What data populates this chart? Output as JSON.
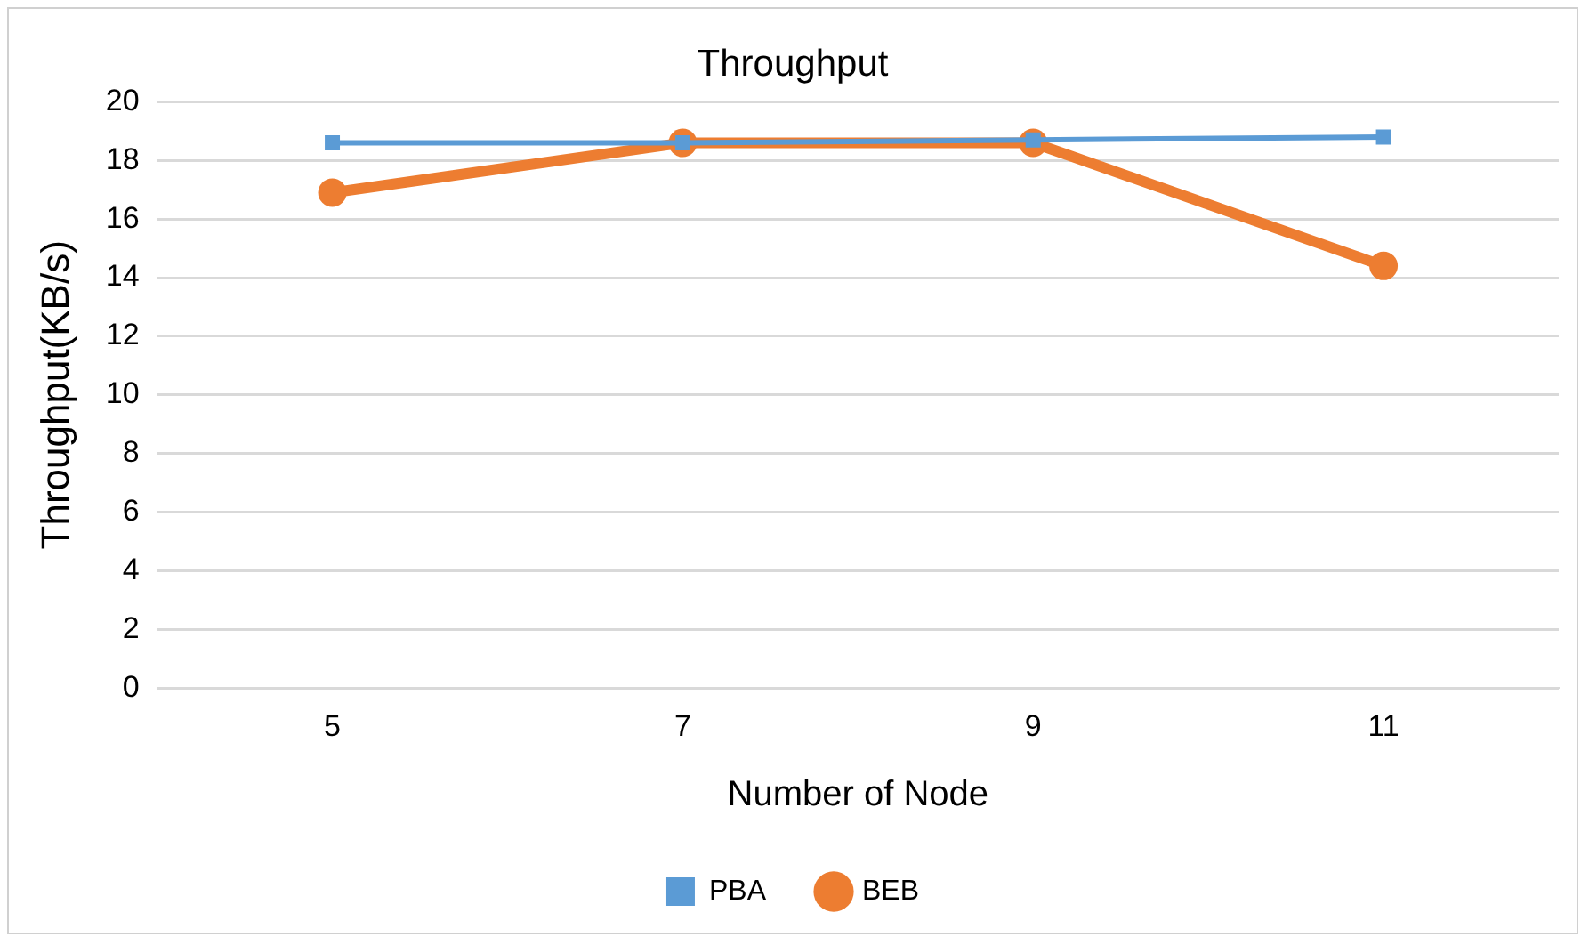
{
  "chart_data": {
    "type": "line",
    "title": "Throughput",
    "xlabel": "Number of Node",
    "ylabel": "Throughput(KB/s)",
    "categories": [
      "5",
      "7",
      "9",
      "11"
    ],
    "series": [
      {
        "name": "PBA",
        "color": "#5b9bd5",
        "marker": "square",
        "values": [
          18.6,
          18.6,
          18.7,
          18.8
        ]
      },
      {
        "name": "BEB",
        "color": "#ed7d31",
        "marker": "circle",
        "values": [
          16.9,
          18.6,
          18.6,
          14.4
        ]
      }
    ],
    "ylim": [
      0,
      20
    ],
    "yticks": [
      0,
      2,
      4,
      6,
      8,
      10,
      12,
      14,
      16,
      18,
      20
    ],
    "grid": "y",
    "legend": "bottom",
    "line_style": "solid"
  }
}
